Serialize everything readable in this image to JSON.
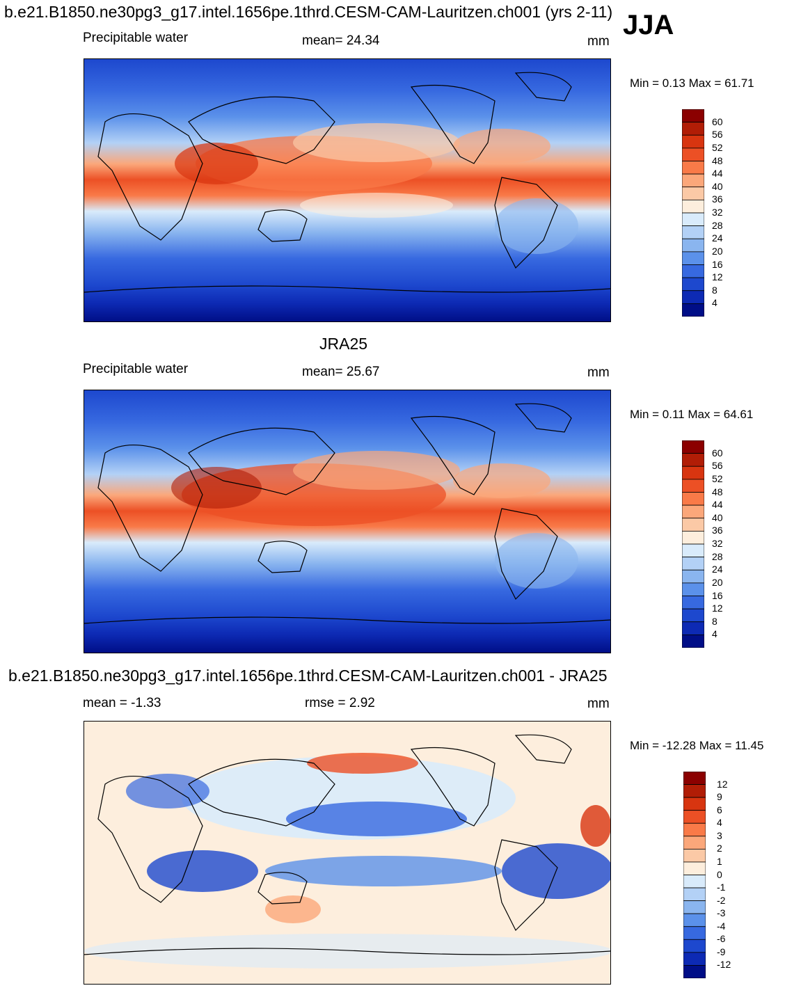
{
  "season": "JJA",
  "panels": [
    {
      "id": "model",
      "title": "b.e21.B1850.ne30pg3_g17.intel.1656pe.1thrd.CESM-CAM-Lauritzen.ch001 (yrs 2-11)",
      "left_label": "Precipitable water",
      "center_label": "mean=  24.34",
      "units": "mm",
      "minmax": "Min =    0.13 Max =  61.71",
      "colorbar": {
        "levels": [
          "60",
          "56",
          "52",
          "48",
          "44",
          "40",
          "36",
          "32",
          "28",
          "24",
          "20",
          "16",
          "12",
          "8",
          "4"
        ],
        "colors": [
          "#8b0000",
          "#b11d06",
          "#d83510",
          "#ec5025",
          "#f97a48",
          "#fba77a",
          "#fbc9a6",
          "#fdeedd",
          "#d9ebfb",
          "#b3d1f6",
          "#8ab5ef",
          "#5b91ea",
          "#3769e0",
          "#1d48ce",
          "#0d2ab4",
          "#000e87"
        ]
      }
    },
    {
      "id": "obs",
      "title": "JRA25",
      "left_label": "Precipitable water",
      "center_label": "mean=  25.67",
      "units": "mm",
      "minmax": "Min =    0.11 Max =  64.61",
      "colorbar": {
        "levels": [
          "60",
          "56",
          "52",
          "48",
          "44",
          "40",
          "36",
          "32",
          "28",
          "24",
          "20",
          "16",
          "12",
          "8",
          "4"
        ],
        "colors": [
          "#8b0000",
          "#b11d06",
          "#d83510",
          "#ec5025",
          "#f97a48",
          "#fba77a",
          "#fbc9a6",
          "#fdeedd",
          "#d9ebfb",
          "#b3d1f6",
          "#8ab5ef",
          "#5b91ea",
          "#3769e0",
          "#1d48ce",
          "#0d2ab4",
          "#000e87"
        ]
      }
    },
    {
      "id": "diff",
      "title": "b.e21.B1850.ne30pg3_g17.intel.1656pe.1thrd.CESM-CAM-Lauritzen.ch001 - JRA25",
      "left_label": "mean =  -1.33",
      "center_label": "rmse =    2.92",
      "units": "mm",
      "minmax": "Min = -12.28 Max =  11.45",
      "colorbar": {
        "levels": [
          "12",
          "9",
          "6",
          "4",
          "3",
          "2",
          "1",
          "0",
          "-1",
          "-2",
          "-3",
          "-4",
          "-6",
          "-9",
          "-12"
        ],
        "colors": [
          "#8b0000",
          "#b11d06",
          "#d83510",
          "#ec5025",
          "#f97a48",
          "#fba77a",
          "#fbc9a6",
          "#fdeedd",
          "#d9ebfb",
          "#b3d1f6",
          "#8ab5ef",
          "#5b91ea",
          "#3769e0",
          "#1d48ce",
          "#0d2ab4",
          "#000e87"
        ]
      }
    }
  ]
}
